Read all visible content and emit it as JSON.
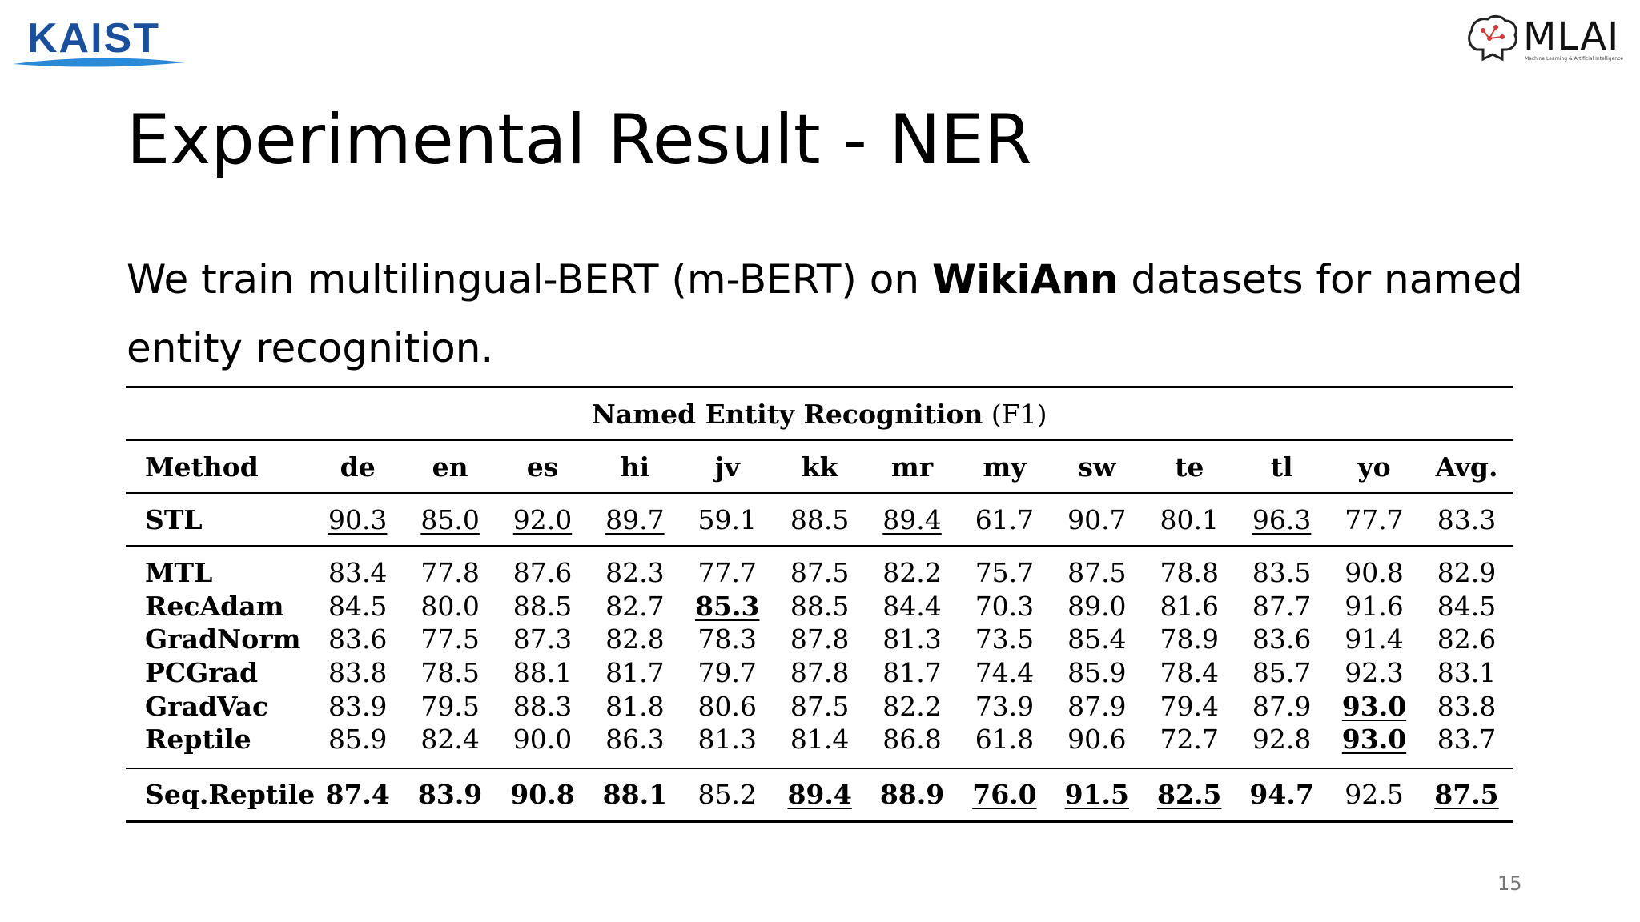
{
  "logos": {
    "left_text": "KAIST",
    "right_text": "MLAI",
    "right_subtitle": "Machine Learning & Artificial Intelligence",
    "left_color": "#1a4f9c",
    "swoosh_color": "#2a8ad8"
  },
  "title": "Experimental Result - NER",
  "intro": {
    "before": "We train multilingual-BERT (m-BERT) on ",
    "bold": "WikiAnn",
    "after": " datasets for named entity recognition."
  },
  "table": {
    "caption_bold": "Named Entity Recognition",
    "caption_plain": " (F1)",
    "columns": [
      "Method",
      "de",
      "en",
      "es",
      "hi",
      "jv",
      "kk",
      "mr",
      "my",
      "sw",
      "te",
      "tl",
      "yo",
      "Avg."
    ],
    "stl": {
      "method": "STL",
      "values": [
        "90.3",
        "85.0",
        "92.0",
        "89.7",
        "59.1",
        "88.5",
        "89.4",
        "61.7",
        "90.7",
        "80.1",
        "96.3",
        "77.7",
        "83.3"
      ]
    },
    "rows": [
      {
        "method": "MTL",
        "values": [
          "83.4",
          "77.8",
          "87.6",
          "82.3",
          "77.7",
          "87.5",
          "82.2",
          "75.7",
          "87.5",
          "78.8",
          "83.5",
          "90.8",
          "82.9"
        ]
      },
      {
        "method": "RecAdam",
        "values": [
          "84.5",
          "80.0",
          "88.5",
          "82.7",
          "85.3",
          "88.5",
          "84.4",
          "70.3",
          "89.0",
          "81.6",
          "87.7",
          "91.6",
          "84.5"
        ]
      },
      {
        "method": "GradNorm",
        "values": [
          "83.6",
          "77.5",
          "87.3",
          "82.8",
          "78.3",
          "87.8",
          "81.3",
          "73.5",
          "85.4",
          "78.9",
          "83.6",
          "91.4",
          "82.6"
        ]
      },
      {
        "method": "PCGrad",
        "values": [
          "83.8",
          "78.5",
          "88.1",
          "81.7",
          "79.7",
          "87.8",
          "81.7",
          "74.4",
          "85.9",
          "78.4",
          "85.7",
          "92.3",
          "83.1"
        ]
      },
      {
        "method": "GradVac",
        "values": [
          "83.9",
          "79.5",
          "88.3",
          "81.8",
          "80.6",
          "87.5",
          "82.2",
          "73.9",
          "87.9",
          "79.4",
          "87.9",
          "93.0",
          "83.8"
        ]
      },
      {
        "method": "Reptile",
        "values": [
          "85.9",
          "82.4",
          "90.0",
          "86.3",
          "81.3",
          "81.4",
          "86.8",
          "61.8",
          "90.6",
          "72.7",
          "92.8",
          "93.0",
          "83.7"
        ]
      }
    ],
    "final": {
      "method": "Seq.Reptile",
      "values": [
        "87.4",
        "83.9",
        "90.8",
        "88.1",
        "85.2",
        "89.4",
        "88.9",
        "76.0",
        "91.5",
        "82.5",
        "94.7",
        "92.5",
        "87.5"
      ]
    }
  },
  "page_number": "15"
}
